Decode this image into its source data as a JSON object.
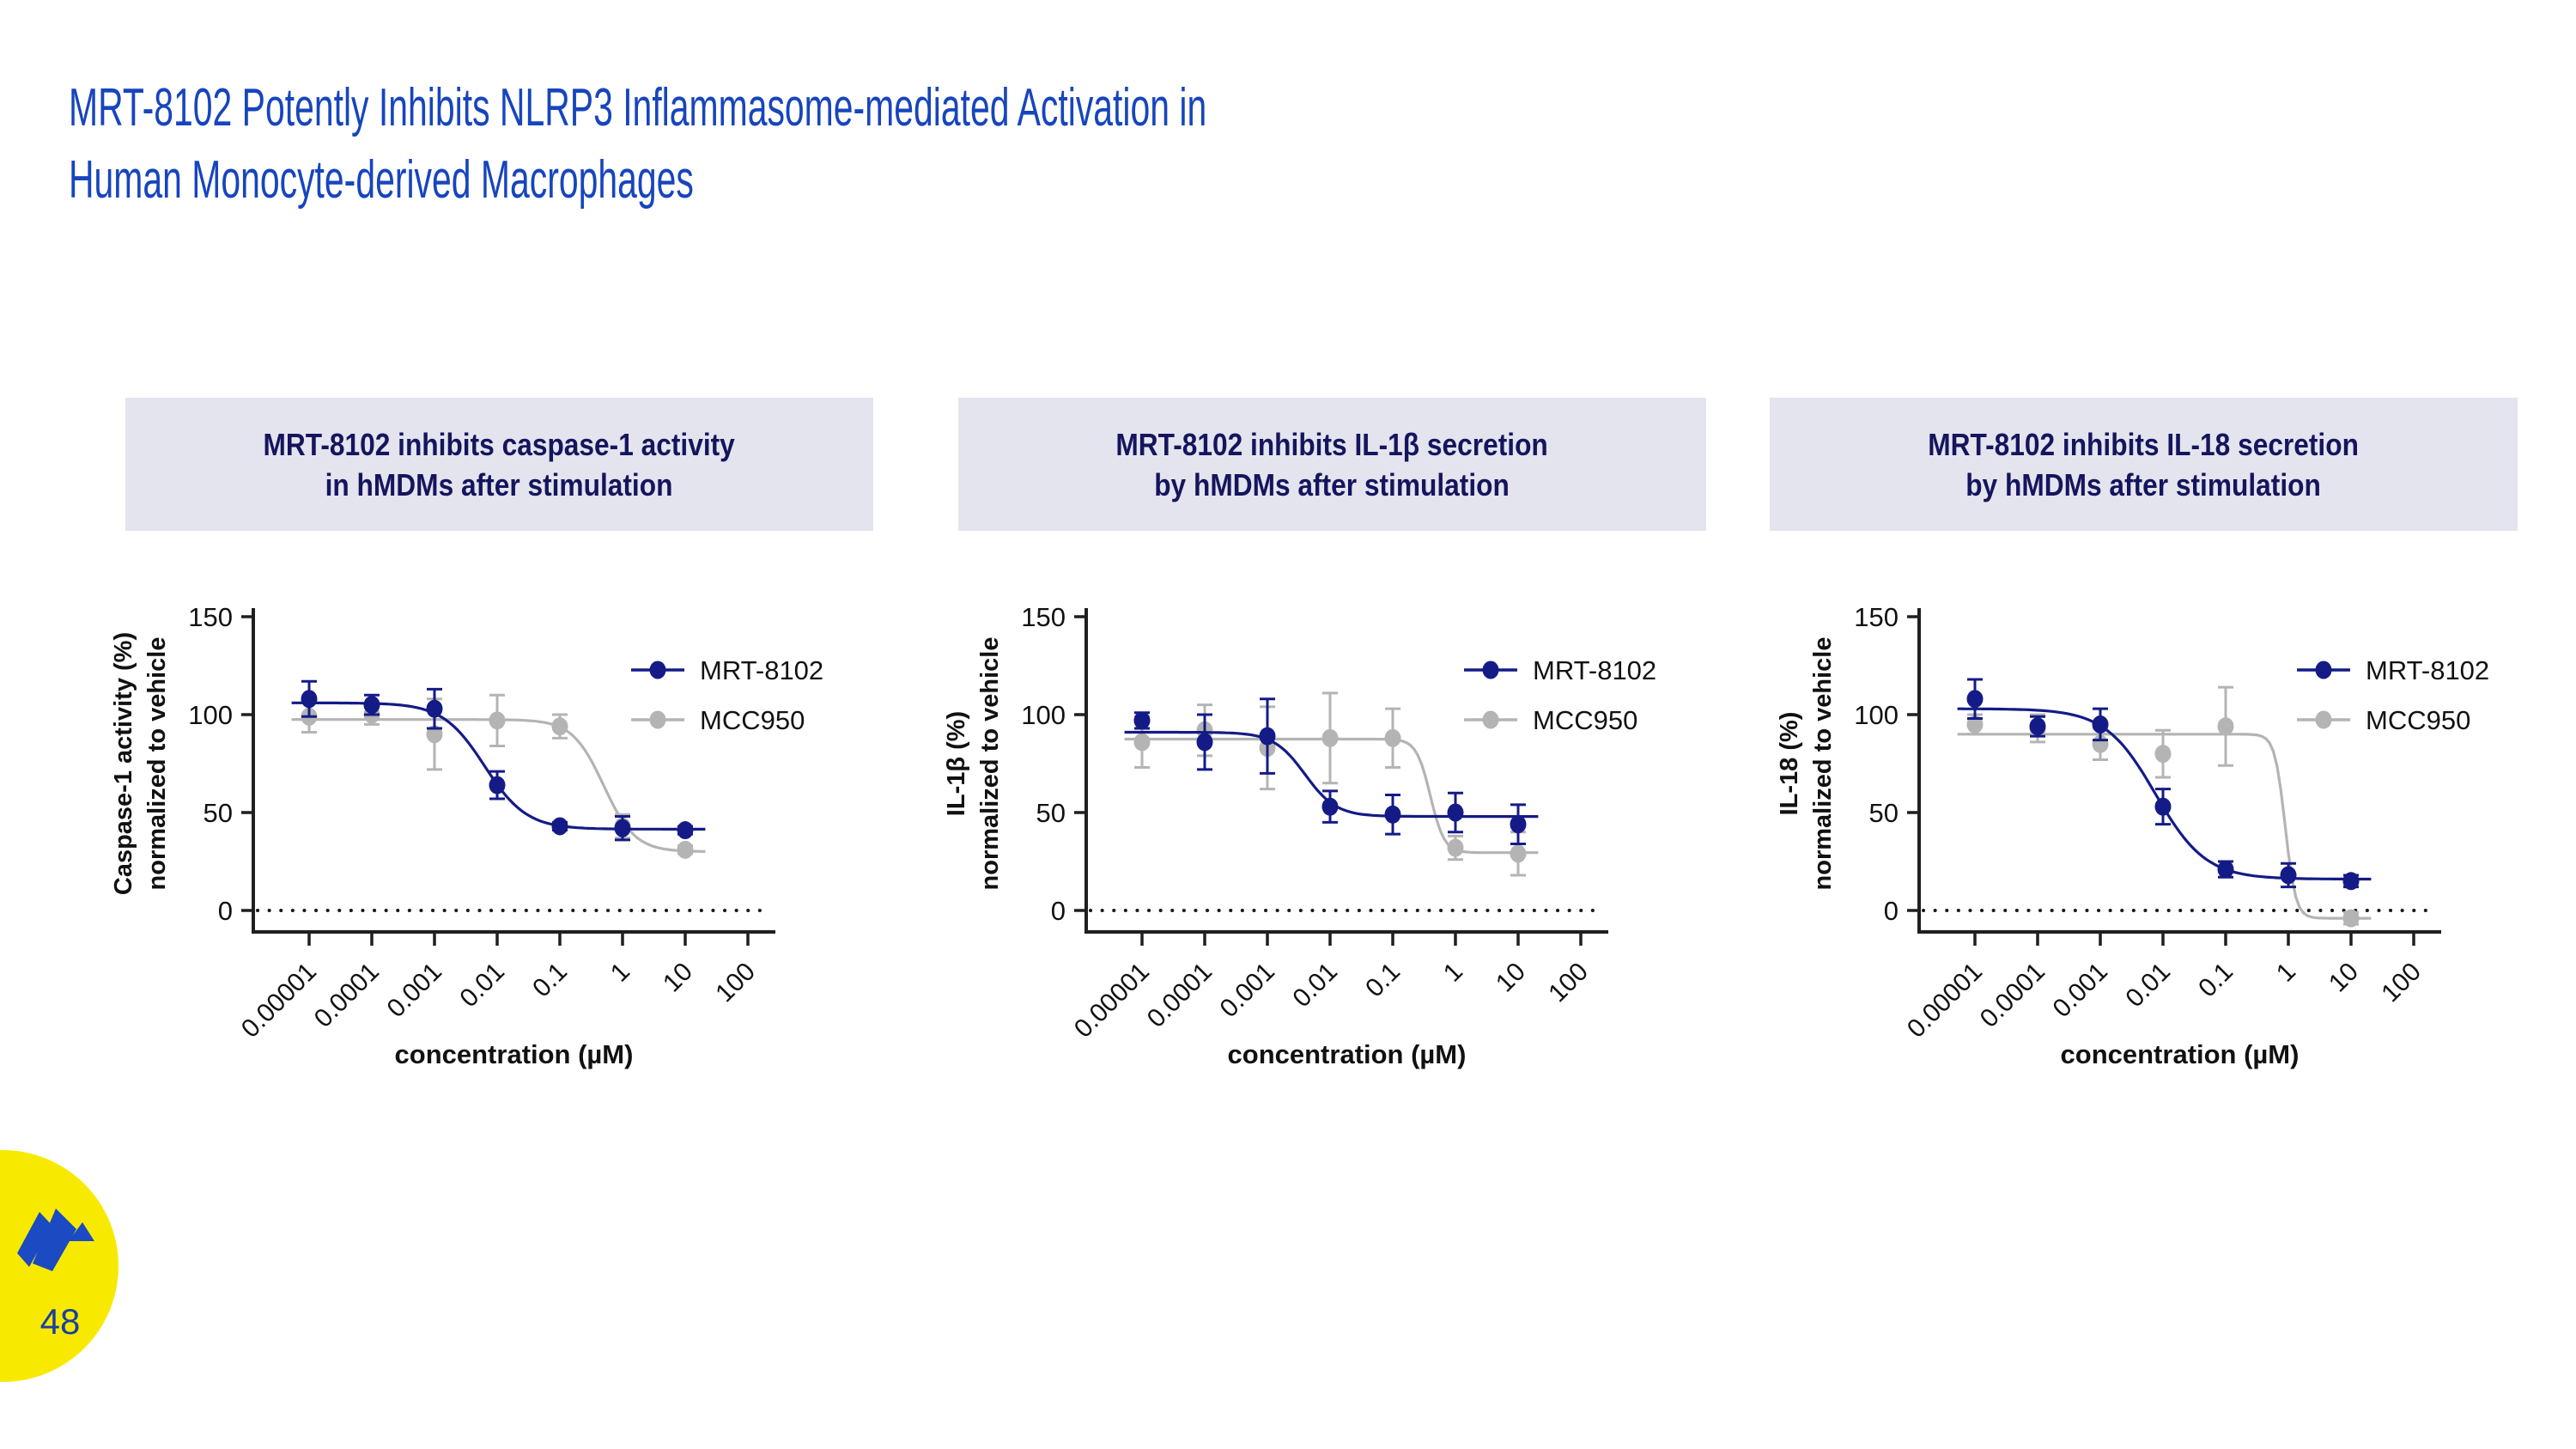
{
  "slide": {
    "title_line1": "MRT-8102 Potently Inhibits NLRP3 Inflammasome-mediated Activation in",
    "title_line2": "Human Monocyte-derived Macrophages",
    "page_number": "48"
  },
  "colors": {
    "title_blue": "#1745bd",
    "header_bg": "#e4e4ee",
    "header_text": "#15155e",
    "series_navy": "#141b87",
    "series_gray": "#b4b4b4",
    "axis_black": "#1f1f1f",
    "logo_yellow": "#f7ea00",
    "logo_blue": "#1b4ac2",
    "page_number_blue": "#1b3f9e"
  },
  "chart_data": [
    {
      "type": "line",
      "header": {
        "line1": "MRT-8102 inhibits caspase-1 activity",
        "line2": "in hMDMs after stimulation"
      },
      "xlabel": "concentration (µM)",
      "ylabel_line1": "Caspase-1 activity (%)",
      "ylabel_line2": "normalized to vehicle",
      "x_scale": "log",
      "x_tick_labels": [
        "0.00001",
        "0.0001",
        "0.001",
        "0.01",
        "0.1",
        "1",
        "10",
        "100"
      ],
      "y_ticks": [
        0,
        50,
        100,
        150
      ],
      "ylim": [
        0,
        150
      ],
      "zero_line": "dotted",
      "legend_position": "top-right",
      "series": [
        {
          "name": "MRT-8102",
          "color": "#141b87",
          "values": [
            108,
            105,
            103,
            64,
            43,
            42,
            41
          ],
          "errors": [
            9,
            5,
            10,
            7,
            2,
            6,
            2
          ],
          "curve": {
            "top": 106,
            "bottom": 41.5,
            "mid": 2.8,
            "slope": 3.0
          }
        },
        {
          "name": "MCC950",
          "color": "#b4b4b4",
          "values": [
            99,
            100,
            90,
            97,
            94,
            43,
            31
          ],
          "errors": [
            8,
            5,
            18,
            13,
            6,
            6,
            2
          ],
          "curve": {
            "top": 97.5,
            "bottom": 30,
            "mid": 4.7,
            "slope": 4.0
          }
        }
      ]
    },
    {
      "type": "line",
      "header": {
        "line1": "MRT-8102 inhibits IL-1β secretion",
        "line2": "by hMDMs after stimulation"
      },
      "xlabel": "concentration (µM)",
      "ylabel_line1": "IL-1β (%)",
      "ylabel_line2": "normalized to vehicle",
      "x_scale": "log",
      "x_tick_labels": [
        "0.00001",
        "0.0001",
        "0.001",
        "0.01",
        "0.1",
        "1",
        "10",
        "100"
      ],
      "y_ticks": [
        0,
        50,
        100,
        150
      ],
      "ylim": [
        0,
        150
      ],
      "zero_line": "dotted",
      "legend_position": "top-right",
      "series": [
        {
          "name": "MRT-8102",
          "color": "#141b87",
          "values": [
            97,
            86,
            89,
            53,
            49,
            50,
            44
          ],
          "errors": [
            4,
            14,
            19,
            8,
            10,
            10,
            10
          ],
          "curve": {
            "top": 91,
            "bottom": 48,
            "mid": 2.6,
            "slope": 4.0
          }
        },
        {
          "name": "MCC950",
          "color": "#b4b4b4",
          "values": [
            86,
            92,
            83,
            88,
            88,
            32,
            29
          ],
          "errors": [
            13,
            13,
            21,
            23,
            15,
            6,
            11
          ],
          "curve": {
            "top": 87.5,
            "bottom": 29.5,
            "mid": 4.6,
            "slope": 9.0
          }
        }
      ]
    },
    {
      "type": "line",
      "header": {
        "line1": "MRT-8102 inhibits IL-18 secretion",
        "line2": "by hMDMs after stimulation"
      },
      "xlabel": "concentration (µM)",
      "ylabel_line1": "IL-18 (%)",
      "ylabel_line2": "normalized to vehicle",
      "x_scale": "log",
      "x_tick_labels": [
        "0.00001",
        "0.0001",
        "0.001",
        "0.01",
        "0.1",
        "1",
        "10",
        "100"
      ],
      "y_ticks": [
        0,
        50,
        100,
        150
      ],
      "ylim": [
        0,
        150
      ],
      "zero_line": "dotted",
      "legend_position": "top-right",
      "series": [
        {
          "name": "MRT-8102",
          "color": "#141b87",
          "values": [
            108,
            94,
            95,
            53,
            21,
            18,
            15
          ],
          "errors": [
            10,
            5,
            8,
            9,
            4,
            6,
            3
          ],
          "curve": {
            "top": 103,
            "bottom": 16,
            "mid": 2.88,
            "slope": 2.5
          }
        },
        {
          "name": "MCC950",
          "color": "#b4b4b4",
          "values": [
            95,
            93,
            85,
            80,
            94,
            null,
            -4
          ],
          "errors": [
            5,
            7,
            8,
            12,
            20,
            null,
            3
          ],
          "curve": {
            "top": 90,
            "bottom": -4,
            "mid": 4.95,
            "slope": 12.0
          }
        }
      ]
    }
  ]
}
